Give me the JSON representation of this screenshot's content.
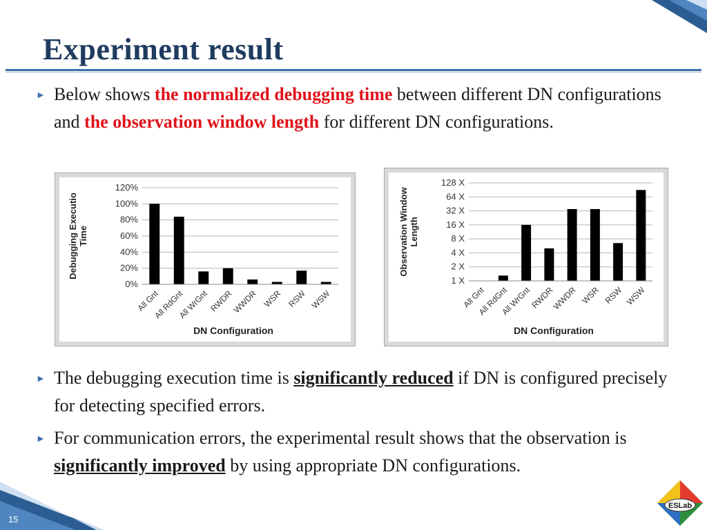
{
  "slide": {
    "title": "Experiment result",
    "page_number": "15",
    "logo_text": "ESLab"
  },
  "bullets": [
    {
      "parts": [
        "Below shows ",
        "the normalized debugging time",
        " between different DN configurations and ",
        "the observation window length",
        " for different DN configurations."
      ]
    },
    {
      "parts": [
        "The debugging execution time is ",
        "significantly reduced",
        " if DN is configured precisely for detecting specified errors."
      ]
    },
    {
      "parts": [
        "For communication errors, the experimental result shows that the observation is ",
        "significantly improved",
        " by using appropriate DN configurations."
      ]
    }
  ],
  "colors": {
    "title": "#1f3b5f",
    "accent": "#3a6fa8",
    "highlight_red": "#e0121a"
  },
  "chart_data": [
    {
      "type": "bar",
      "categories": [
        "All Gnt",
        "All RdGnt",
        "All WrGnt",
        "RWDR",
        "WWDR",
        "WSR",
        "RSW",
        "WSW"
      ],
      "values": [
        100,
        84,
        16,
        20,
        6,
        3,
        17,
        3
      ],
      "xlabel": "DN Configuration",
      "ylabel": "Debugging Executio Time",
      "ylim": [
        0,
        120
      ],
      "yticks": [
        "0%",
        "20%",
        "40%",
        "60%",
        "80%",
        "100%",
        "120%"
      ],
      "grid": true
    },
    {
      "type": "bar",
      "scale": "log2",
      "categories": [
        "All Gnt",
        "All RdGnt",
        "All WrGnt",
        "RWDR",
        "WWDR",
        "WSR",
        "RSW",
        "WSW"
      ],
      "values": [
        1,
        1.3,
        16,
        5,
        35,
        35,
        6.5,
        90
      ],
      "xlabel": "DN Configuration",
      "ylabel": "Observation Window Length",
      "ylim": [
        1,
        128
      ],
      "yticks": [
        "1 X",
        "2 X",
        "4 X",
        "8 X",
        "16 X",
        "32 X",
        "64 X",
        "128 X"
      ],
      "grid": true
    }
  ]
}
